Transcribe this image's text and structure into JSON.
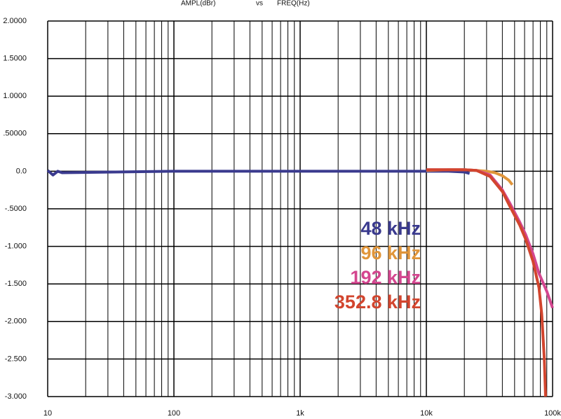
{
  "chart_data": {
    "type": "line",
    "title": {
      "y": "AMPL(dBr)",
      "vs": "vs",
      "x": "FREQ(Hz)"
    },
    "xscale": "log",
    "grid": true,
    "xlim": [
      10,
      100000
    ],
    "xticks": [
      10,
      100,
      {
        "value": 1000,
        "label": "1k"
      },
      {
        "value": 10000,
        "label": "10k"
      },
      {
        "value": 100000,
        "label": "100k"
      }
    ],
    "ylim": [
      -3,
      2
    ],
    "yticks": [
      {
        "value": 2,
        "label": "2.0000"
      },
      {
        "value": 1.5,
        "label": "1.5000"
      },
      {
        "value": 1,
        "label": "1.0000"
      },
      {
        "value": 0.5,
        "label": ".50000"
      },
      {
        "value": 0,
        "label": "0.0"
      },
      {
        "value": -0.5,
        "label": "-.5000"
      },
      {
        "value": -1,
        "label": "-1.000"
      },
      {
        "value": -1.5,
        "label": "-1.500"
      },
      {
        "value": -2,
        "label": "-2.000"
      },
      {
        "value": -2.5,
        "label": "-2.500"
      },
      {
        "value": -3,
        "label": "-3.000"
      }
    ],
    "series": [
      {
        "name": "48 kHz",
        "color": "#3a3a8e",
        "x": [
          10,
          11,
          12,
          13,
          100,
          1000,
          10000,
          15000,
          20000,
          22000
        ],
        "values": [
          0.01,
          -0.05,
          0.0,
          -0.02,
          0,
          0,
          0,
          0,
          -0.01,
          -0.03
        ]
      },
      {
        "name": "96 kHz",
        "color": "#e0953a",
        "x": [
          10000,
          15000,
          20000,
          25000,
          30000,
          35000,
          40000,
          45000,
          48000
        ],
        "values": [
          0.01,
          0.02,
          0.02,
          0.01,
          0,
          -0.02,
          -0.06,
          -0.12,
          -0.18
        ]
      },
      {
        "name": "192 kHz",
        "color": "#d4468f",
        "x": [
          10000,
          20000,
          25000,
          32000,
          40000,
          46000,
          55000,
          61000,
          70000,
          78000,
          90000,
          100000
        ],
        "values": [
          0.02,
          0.02,
          0.01,
          -0.05,
          -0.25,
          -0.43,
          -0.68,
          -0.84,
          -1.1,
          -1.36,
          -1.6,
          -1.82
        ]
      },
      {
        "name": "352.8 kHz",
        "color": "#d2452e",
        "x": [
          10000,
          20000,
          25000,
          32000,
          40000,
          46000,
          55000,
          61000,
          70000,
          78000,
          82000,
          86000,
          88000
        ],
        "values": [
          0.02,
          0.02,
          0.01,
          -0.07,
          -0.27,
          -0.47,
          -0.72,
          -0.9,
          -1.2,
          -1.55,
          -1.9,
          -2.5,
          -3.0
        ]
      }
    ]
  }
}
